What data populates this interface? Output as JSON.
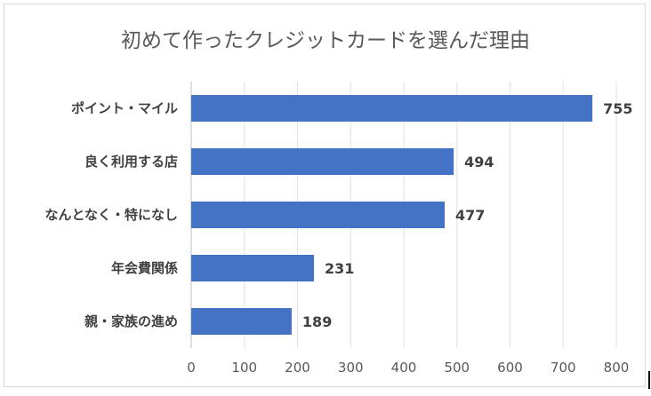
{
  "chart_data": {
    "type": "bar",
    "orientation": "horizontal",
    "title": "初めて作ったクレジットカードを選んだ理由",
    "categories": [
      "ポイント・マイル",
      "良く利用する店",
      "なんとなく・特になし",
      "年会費関係",
      "親・家族の進め"
    ],
    "values": [
      755,
      494,
      477,
      231,
      189
    ],
    "xlim": [
      0,
      800
    ],
    "xticks": [
      0,
      100,
      200,
      300,
      400,
      500,
      600,
      700,
      800
    ],
    "grid": true,
    "legend": "none",
    "bar_color": "#4472c4",
    "data_labels": true
  }
}
